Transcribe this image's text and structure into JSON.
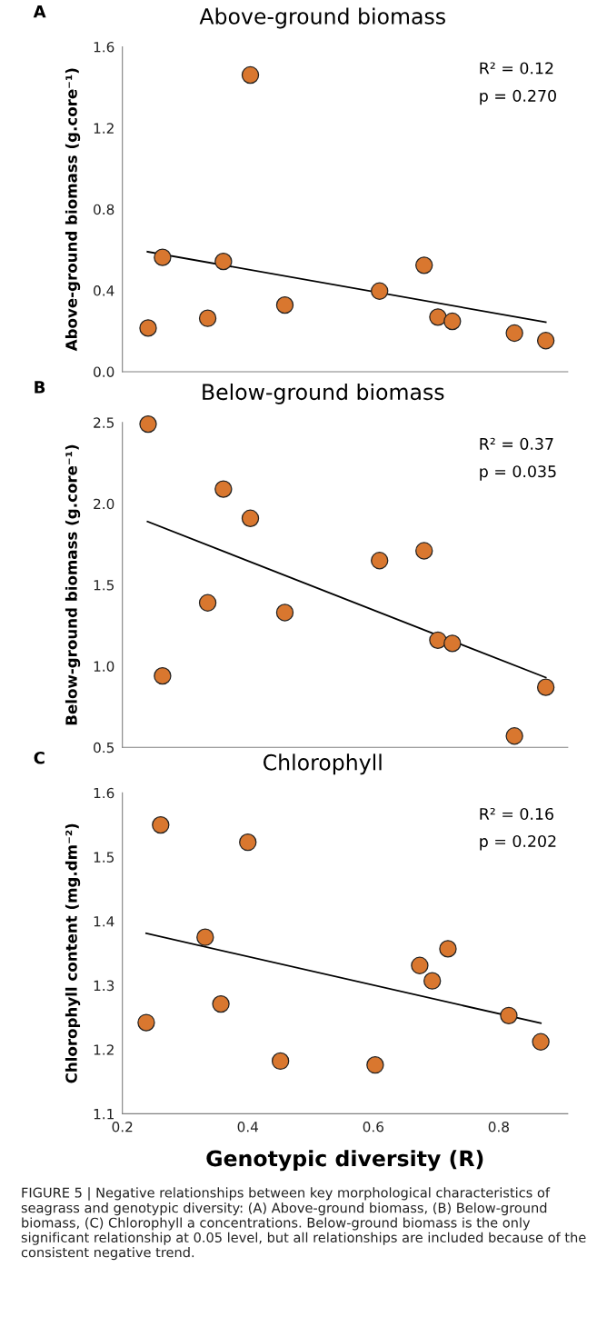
{
  "chart_data": [
    {
      "type": "scatter",
      "title": "Above-ground biomass",
      "ylabel": "Above-ground biomass (g.core⁻¹)",
      "xlim": [
        0.2,
        0.91
      ],
      "xticks": [
        0.2,
        0.4,
        0.6,
        0.8
      ],
      "ylim": [
        0.0,
        1.6
      ],
      "yticks": [
        {
          "value": 0.0,
          "label": "0.0"
        },
        0.4,
        0.8,
        1.2,
        1.6
      ],
      "tick_labels": "y",
      "grid": false,
      "x": [
        0.241,
        0.264,
        0.336,
        0.361,
        0.404,
        0.459,
        0.61,
        0.681,
        0.703,
        0.726,
        0.825,
        0.875
      ],
      "series": [
        {
          "color": "#d9772f",
          "marker": "circle",
          "values": [
            0.215,
            0.563,
            0.263,
            0.543,
            1.461,
            0.328,
            0.397,
            0.524,
            0.269,
            0.248,
            0.19,
            0.153
          ]
        },
        {
          "type": "line",
          "marker": "none",
          "color": "#000000",
          "x": [
            0.24,
            0.875
          ],
          "values": [
            0.591,
            0.244
          ]
        }
      ],
      "annotations": [
        "A",
        "R² = 0.12",
        "p = 0.270"
      ]
    },
    {
      "type": "scatter",
      "title": "Below-ground biomass",
      "ylabel": "Below-ground biomass (g.core⁻¹)",
      "xlim": [
        0.2,
        0.91
      ],
      "xticks": [
        0.2,
        0.4,
        0.6,
        0.8
      ],
      "ylim": [
        0.5,
        2.5
      ],
      "yticks": [
        0.5,
        {
          "value": 1.0,
          "label": "1.0"
        },
        1.5,
        {
          "value": 2.0,
          "label": "2.0"
        },
        2.5
      ],
      "tick_labels": "y",
      "grid": false,
      "x": [
        0.241,
        0.264,
        0.336,
        0.361,
        0.404,
        0.459,
        0.61,
        0.681,
        0.703,
        0.726,
        0.825,
        0.875
      ],
      "series": [
        {
          "color": "#d9772f",
          "marker": "circle",
          "values": [
            2.49,
            0.94,
            1.39,
            2.09,
            1.91,
            1.33,
            1.65,
            1.71,
            1.16,
            1.14,
            0.57,
            0.87
          ]
        },
        {
          "type": "line",
          "marker": "none",
          "color": "#000000",
          "x": [
            0.24,
            0.875
          ],
          "values": [
            1.89,
            0.93
          ]
        }
      ],
      "annotations": [
        "B",
        "R² = 0.37",
        "p = 0.035"
      ]
    },
    {
      "type": "scatter",
      "title": "Chlorophyll",
      "ylabel": "Chlorophyll content (mg.dm⁻²)",
      "xlabel": "Genotypic diversity (R)",
      "xlim": [
        0.2,
        0.91
      ],
      "xticks": [
        0.2,
        0.4,
        0.6,
        0.8
      ],
      "ylim": [
        1.1,
        1.6
      ],
      "yticks": [
        1.1,
        1.2,
        1.3,
        1.4,
        1.5,
        1.6
      ],
      "grid": false,
      "x": [
        0.238,
        0.261,
        0.332,
        0.357,
        0.4,
        0.452,
        0.603,
        0.674,
        0.694,
        0.719,
        0.816,
        0.867
      ],
      "series": [
        {
          "color": "#d9772f",
          "marker": "circle",
          "values": [
            1.242,
            1.55,
            1.375,
            1.271,
            1.523,
            1.182,
            1.176,
            1.331,
            1.307,
            1.357,
            1.253,
            1.212
          ]
        },
        {
          "type": "line",
          "marker": "none",
          "color": "#000000",
          "x": [
            0.238,
            0.867
          ],
          "values": [
            1.381,
            1.241
          ]
        }
      ],
      "annotations": [
        "C",
        "R² = 0.16",
        "p = 0.202",
        "FIGURE 5 | Negative relationships between key morphological characteristics of seagrass and genotypic diversity: (A) Above-ground biomass, (B) Below-ground biomass, (C) Chlorophyll a concentrations. Below-ground biomass is the only significant relationship at 0.05 level, but all relationships are included because of the consistent negative trend."
      ]
    }
  ]
}
